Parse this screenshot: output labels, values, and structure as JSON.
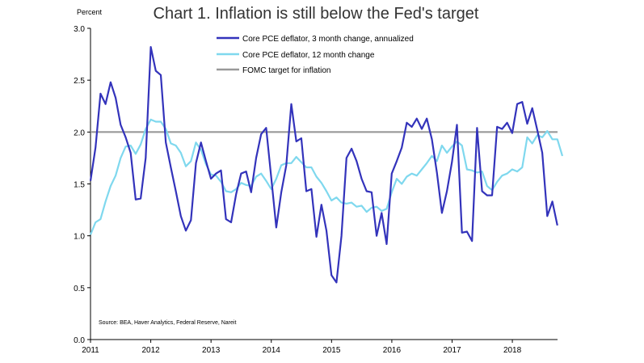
{
  "chart_data": {
    "type": "line",
    "title": "Chart 1. Inflation is still below the Fed's target",
    "ylabel": "Percent",
    "source": "Source: BEA, Haver Analytics, Federal Reserve, Nareit",
    "ylim": [
      0.0,
      3.0
    ],
    "yticks": [
      "0.0",
      "0.5",
      "1.0",
      "1.5",
      "2.0",
      "2.5",
      "3.0"
    ],
    "xlim": [
      2011.0,
      2018.75
    ],
    "xticks": [
      "2011",
      "2012",
      "2013",
      "2014",
      "2015",
      "2016",
      "2017",
      "2018"
    ],
    "legend_position": "top-center",
    "grid": false,
    "series": [
      {
        "name": "Core PCE deflator, 3 month change, annualized",
        "color": "#3333bb",
        "x_start": 2011.0,
        "x_step": 0.0833,
        "values": [
          1.53,
          1.85,
          2.37,
          2.27,
          2.48,
          2.33,
          2.07,
          1.95,
          1.8,
          1.35,
          1.36,
          1.75,
          2.82,
          2.59,
          2.55,
          1.9,
          1.66,
          1.43,
          1.19,
          1.05,
          1.15,
          1.7,
          1.9,
          1.72,
          1.55,
          1.6,
          1.63,
          1.16,
          1.13,
          1.4,
          1.6,
          1.62,
          1.42,
          1.75,
          1.98,
          2.04,
          1.56,
          1.08,
          1.42,
          1.68,
          2.27,
          1.91,
          1.94,
          1.43,
          1.45,
          0.99,
          1.3,
          1.05,
          0.62,
          0.55,
          1.0,
          1.75,
          1.84,
          1.72,
          1.55,
          1.43,
          1.42,
          1.0,
          1.22,
          0.92,
          1.6,
          1.72,
          1.85,
          2.09,
          2.05,
          2.13,
          2.03,
          2.13,
          1.93,
          1.61,
          1.22,
          1.43,
          1.71,
          2.07,
          1.03,
          1.04,
          0.95,
          2.04,
          1.43,
          1.39,
          1.39,
          2.05,
          2.03,
          2.09,
          1.99,
          2.27,
          2.29,
          2.08,
          2.23,
          2.02,
          1.8,
          1.19,
          1.33,
          1.1
        ]
      },
      {
        "name": "Core PCE deflator, 12 month change",
        "color": "#7fd8ee",
        "x_start": 2011.0,
        "x_step": 0.0833,
        "values": [
          1.01,
          1.13,
          1.16,
          1.33,
          1.48,
          1.58,
          1.75,
          1.86,
          1.87,
          1.79,
          1.88,
          2.03,
          2.12,
          2.1,
          2.1,
          2.03,
          1.89,
          1.87,
          1.8,
          1.67,
          1.72,
          1.9,
          1.83,
          1.69,
          1.59,
          1.58,
          1.52,
          1.43,
          1.42,
          1.45,
          1.51,
          1.49,
          1.48,
          1.57,
          1.6,
          1.53,
          1.45,
          1.55,
          1.68,
          1.7,
          1.7,
          1.76,
          1.71,
          1.66,
          1.66,
          1.57,
          1.51,
          1.43,
          1.34,
          1.37,
          1.32,
          1.31,
          1.32,
          1.28,
          1.29,
          1.23,
          1.27,
          1.28,
          1.24,
          1.26,
          1.42,
          1.55,
          1.5,
          1.57,
          1.6,
          1.58,
          1.64,
          1.7,
          1.77,
          1.72,
          1.87,
          1.8,
          1.86,
          1.91,
          1.87,
          1.64,
          1.63,
          1.61,
          1.62,
          1.48,
          1.44,
          1.52,
          1.58,
          1.6,
          1.64,
          1.62,
          1.66,
          1.95,
          1.89,
          1.97,
          1.95,
          2.01,
          1.93,
          1.93,
          1.77
        ]
      },
      {
        "name": "FOMC target for inflation",
        "color": "#999999",
        "x": [
          2011.0,
          2018.75
        ],
        "values": [
          2.0,
          2.0
        ]
      }
    ]
  }
}
